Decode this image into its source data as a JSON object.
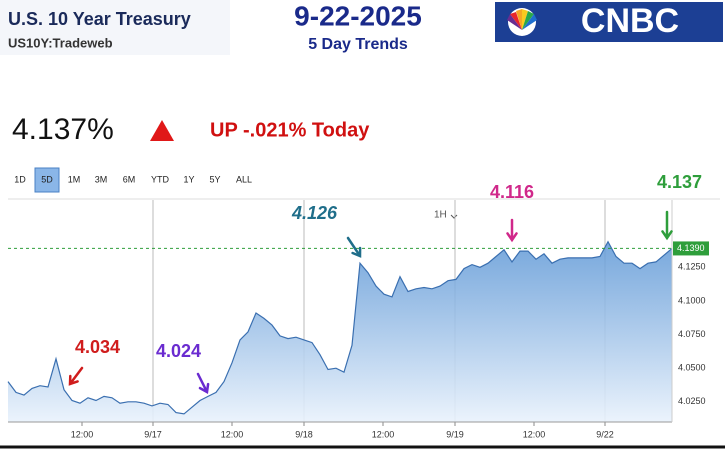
{
  "header": {
    "title": "U.S. 10 Year Treasury",
    "symbol": "US10Y:Tradeweb",
    "date": "9-22-2025",
    "subtitle": "5 Day Trends",
    "logo": "CNBC"
  },
  "quote": {
    "price": "4.137%",
    "change": "UP -.021% Today"
  },
  "ranges": [
    "1D",
    "5D",
    "1M",
    "3M",
    "6M",
    "YTD",
    "1Y",
    "5Y",
    "ALL"
  ],
  "selected_range": "5D",
  "interval": "1H",
  "chart_data": {
    "type": "area",
    "color": "#3a6fb0",
    "values": [
      4.04,
      4.032,
      4.03,
      4.035,
      4.037,
      4.036,
      4.057,
      4.034,
      4.026,
      4.024,
      4.028,
      4.026,
      4.029,
      4.028,
      4.024,
      4.025,
      4.025,
      4.024,
      4.022,
      4.024,
      4.023,
      4.017,
      4.016,
      4.021,
      4.026,
      4.029,
      4.032,
      4.04,
      4.054,
      4.071,
      4.077,
      4.091,
      4.087,
      4.082,
      4.074,
      4.072,
      4.073,
      4.071,
      4.069,
      4.06,
      4.049,
      4.05,
      4.047,
      4.067,
      4.128,
      4.121,
      4.111,
      4.105,
      4.103,
      4.118,
      4.107,
      4.109,
      4.11,
      4.109,
      4.111,
      4.115,
      4.116,
      4.124,
      4.127,
      4.125,
      4.128,
      4.133,
      4.138,
      4.129,
      4.137,
      4.137,
      4.131,
      4.135,
      4.128,
      4.131,
      4.132,
      4.132,
      4.132,
      4.132,
      4.133,
      4.144,
      4.133,
      4.128,
      4.128,
      4.124,
      4.128,
      4.129,
      4.134,
      4.139
    ],
    "xlim": [
      0,
      83
    ],
    "xticks": [
      {
        "value": 9.25,
        "label": "12:00"
      },
      {
        "value": 18.125,
        "label": "9/17"
      },
      {
        "value": 28,
        "label": "12:00"
      },
      {
        "value": 37,
        "label": "9/18"
      },
      {
        "value": 46.875,
        "label": "12:00"
      },
      {
        "value": 55.875,
        "label": "9/19"
      },
      {
        "value": 65.75,
        "label": "12:00"
      },
      {
        "value": 74.625,
        "label": "9/22"
      }
    ],
    "ylim": [
      4.01,
      4.175
    ],
    "yticks": [
      {
        "value": 4.025,
        "label": "4.0250"
      },
      {
        "value": 4.05,
        "label": "4.0500"
      },
      {
        "value": 4.075,
        "label": "4.0750"
      },
      {
        "value": 4.1,
        "label": "4.1000"
      },
      {
        "value": 4.125,
        "label": "4.1250"
      }
    ],
    "reference_line": {
      "value": 4.139,
      "label": "4.1390",
      "color": "#2e9e3b"
    },
    "annotations": [
      {
        "value": 4.034,
        "color": "#d01c1c"
      },
      {
        "value": 4.024,
        "color": "#6a2bd0"
      },
      {
        "value": 4.126,
        "color": "#1f6e8a"
      },
      {
        "value": 4.116,
        "color": "#d0288a"
      },
      {
        "value": 4.137,
        "color": "#2e9e3b"
      }
    ]
  }
}
